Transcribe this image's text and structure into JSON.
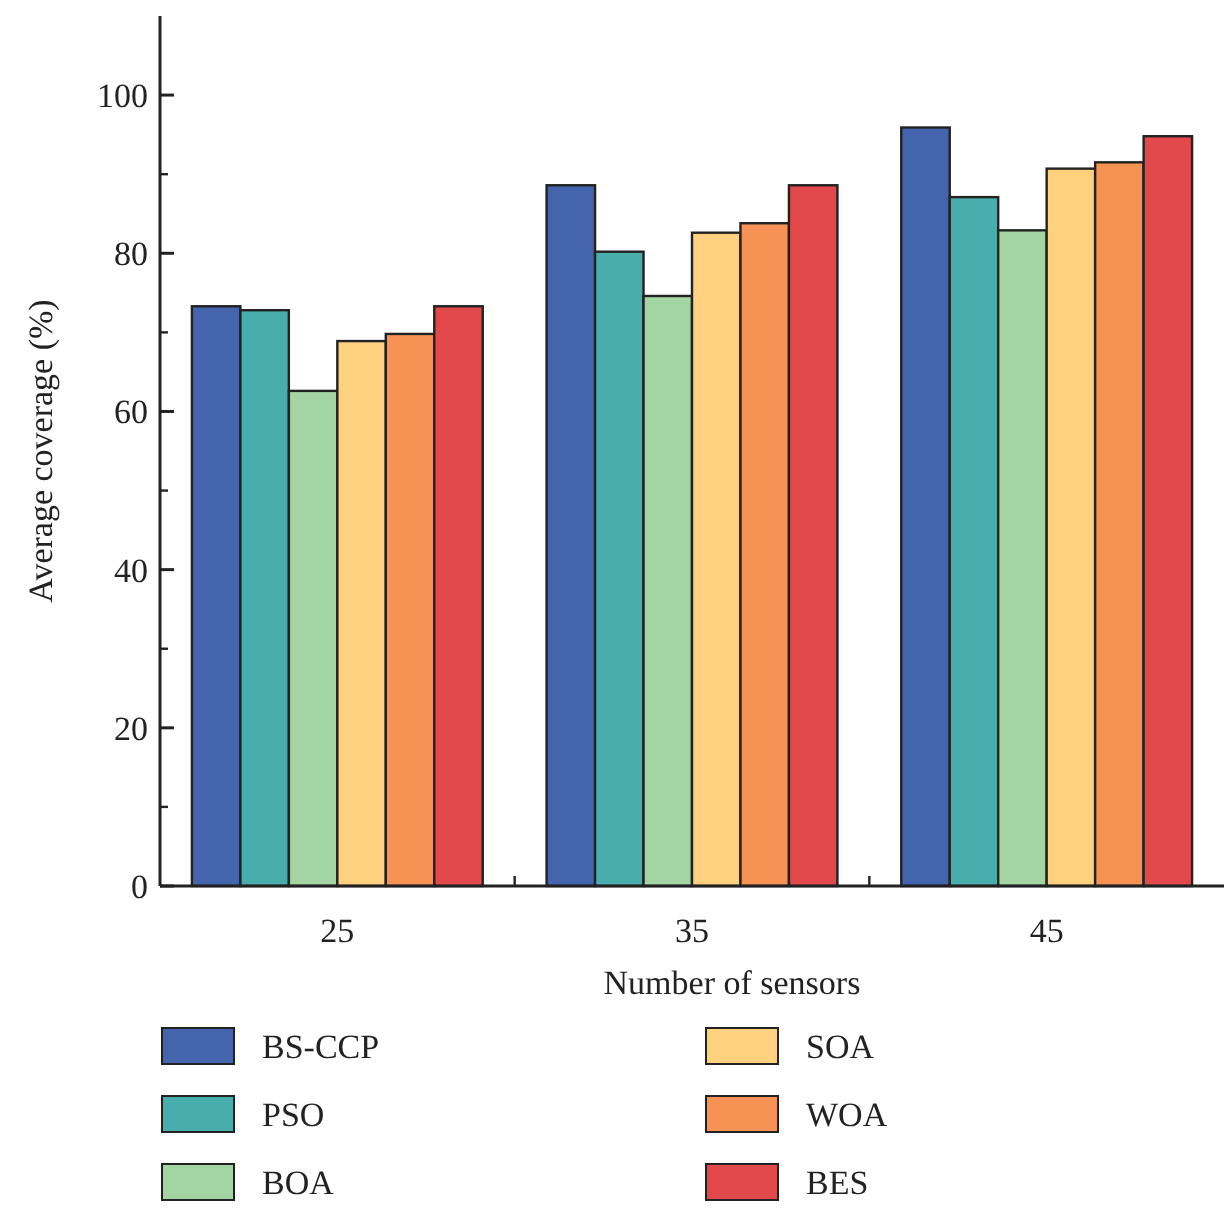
{
  "chart_data": {
    "type": "bar",
    "xlabel": "Number of sensors",
    "ylabel": "Average coverage (%)",
    "categories": [
      "25",
      "35",
      "45"
    ],
    "ylim": [
      0,
      110
    ],
    "yticks": [
      0,
      20,
      40,
      60,
      80,
      100
    ],
    "legend": "bottom",
    "grid": false,
    "series": [
      {
        "name": "BS-CCP",
        "color": "#4464ad",
        "values": [
          73.3,
          88.6,
          95.9
        ]
      },
      {
        "name": "PSO",
        "color": "#47adad",
        "values": [
          72.8,
          80.2,
          87.1
        ]
      },
      {
        "name": "BOA",
        "color": "#a2d5a2",
        "values": [
          62.6,
          74.6,
          82.9
        ]
      },
      {
        "name": "SOA",
        "color": "#fed17e",
        "values": [
          68.9,
          82.6,
          90.7
        ]
      },
      {
        "name": "WOA",
        "color": "#f69253",
        "values": [
          69.8,
          83.8,
          91.5
        ]
      },
      {
        "name": "BES",
        "color": "#e2494a",
        "values": [
          73.3,
          88.6,
          94.8
        ]
      }
    ]
  }
}
